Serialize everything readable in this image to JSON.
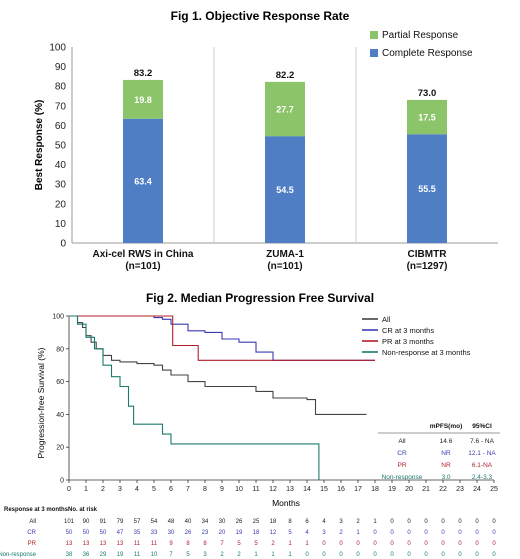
{
  "chart_data": [
    {
      "type": "bar",
      "stacked": true,
      "title": "Fig 1. Objective Response Rate",
      "ylabel": "Best Response (%)",
      "xlabel": "",
      "ylim": [
        0,
        100
      ],
      "yticks": [
        0,
        10,
        20,
        30,
        40,
        50,
        60,
        70,
        80,
        90,
        100
      ],
      "grid": false,
      "legend_position": "top-right",
      "categories": [
        {
          "name": "Axi-cel RWS in China",
          "n": "(n=101)"
        },
        {
          "name": "ZUMA-1",
          "n": "(n=101)"
        },
        {
          "name": "CIBMTR",
          "n": "(n=1297)"
        }
      ],
      "series": [
        {
          "name": "Complete Response",
          "color": "#4f7ec4",
          "values": [
            63.4,
            54.5,
            55.5
          ]
        },
        {
          "name": "Partial Response",
          "color": "#8cc46a",
          "values": [
            19.8,
            27.7,
            17.5
          ]
        }
      ],
      "totals": [
        83.2,
        82.2,
        73.0
      ],
      "total_labels": [
        "83.2",
        "82.2",
        "73.0"
      ],
      "value_labels": {
        "Complete Response": [
          "63.4",
          "54.5",
          "55.5"
        ],
        "Partial Response": [
          "19.8",
          "27.7",
          "17.5"
        ]
      }
    },
    {
      "type": "line",
      "subtype": "kaplan-meier",
      "title": "Fig 2. Median Progression Free Survival",
      "ylabel": "Progression-free Survival (%)",
      "xlabel": "Months",
      "xlim": [
        0,
        25
      ],
      "ylim": [
        0,
        100
      ],
      "xticks": [
        0,
        1,
        2,
        3,
        4,
        5,
        6,
        7,
        8,
        9,
        10,
        11,
        12,
        13,
        14,
        15,
        16,
        17,
        18,
        19,
        20,
        21,
        22,
        23,
        24,
        25
      ],
      "yticks": [
        0,
        20,
        40,
        60,
        80,
        100
      ],
      "grid": false,
      "legend_position": "top-right",
      "series": [
        {
          "name": "All",
          "color": "#444444",
          "points": [
            [
              0,
              100
            ],
            [
              0.5,
              96
            ],
            [
              0.8,
              93
            ],
            [
              1,
              88
            ],
            [
              1.3,
              84
            ],
            [
              1.6,
              80
            ],
            [
              2,
              76
            ],
            [
              2.5,
              73
            ],
            [
              3,
              72
            ],
            [
              4,
              71
            ],
            [
              5,
              70
            ],
            [
              5.5,
              67
            ],
            [
              6,
              64
            ],
            [
              7,
              60
            ],
            [
              8,
              57
            ],
            [
              10,
              57
            ],
            [
              11,
              54
            ],
            [
              12,
              50
            ],
            [
              13,
              50
            ],
            [
              14,
              49
            ],
            [
              14.5,
              40
            ],
            [
              17.5,
              40
            ]
          ]
        },
        {
          "name": "CR at 3 months",
          "color": "#3a3ab0",
          "points": [
            [
              0,
              100
            ],
            [
              3,
              100
            ],
            [
              4,
              100
            ],
            [
              5,
              99
            ],
            [
              5.5,
              98
            ],
            [
              6,
              95
            ],
            [
              7,
              91
            ],
            [
              8,
              90
            ],
            [
              9,
              86
            ],
            [
              10,
              84
            ],
            [
              11,
              78
            ],
            [
              12,
              73
            ],
            [
              13,
              73
            ],
            [
              18,
              73
            ]
          ]
        },
        {
          "name": "PR at 3 months",
          "color": "#b01e2a",
          "points": [
            [
              0,
              100
            ],
            [
              6,
              100
            ],
            [
              6.1,
              82
            ],
            [
              7.5,
              82
            ],
            [
              7.6,
              73
            ],
            [
              12,
              73
            ],
            [
              18,
              73
            ]
          ]
        },
        {
          "name": "Non-response at 3 months",
          "color": "#1a7a6e",
          "points": [
            [
              0,
              100
            ],
            [
              0.5,
              95
            ],
            [
              1,
              87
            ],
            [
              1.5,
              80
            ],
            [
              2,
              70
            ],
            [
              2.5,
              63
            ],
            [
              3,
              57
            ],
            [
              3.5,
              45
            ],
            [
              3.8,
              34
            ],
            [
              5,
              34
            ],
            [
              5.5,
              28
            ],
            [
              6,
              22
            ],
            [
              7,
              22
            ],
            [
              14.7,
              22
            ],
            [
              14.7,
              0
            ]
          ]
        }
      ],
      "table": {
        "headers": [
          "",
          "mPFS(mo)",
          "95%CI"
        ],
        "rows": [
          {
            "group": "All",
            "mpfs": "14.6",
            "ci": "7.6 - NA",
            "color": "#222222"
          },
          {
            "group": "CR",
            "mpfs": "NR",
            "ci": "12.1 - NA",
            "color": "#3a3ab0"
          },
          {
            "group": "PR",
            "mpfs": "NR",
            "ci": "6.1-NA",
            "color": "#b01e2a"
          },
          {
            "group": "Non-response",
            "mpfs": "3.0",
            "ci": "2.4-3.3",
            "color": "#1a7a6e"
          }
        ]
      },
      "risk_table": {
        "title": "Response at 3 months",
        "subtitle": "No. at risk",
        "rows": [
          {
            "label": "All",
            "color": "#222222",
            "values": [
              "101",
              "90",
              "91",
              "79",
              "57",
              "54",
              "48",
              "40",
              "34",
              "30",
              "26",
              "25",
              "18",
              "8",
              "6",
              "4",
              "3",
              "2",
              "1",
              "0",
              "0",
              "0",
              "0",
              "0",
              "0",
              "0"
            ]
          },
          {
            "label": "CR",
            "color": "#3a3ab0",
            "values": [
              "50",
              "50",
              "50",
              "47",
              "35",
              "33",
              "30",
              "26",
              "23",
              "20",
              "19",
              "18",
              "12",
              "5",
              "4",
              "3",
              "2",
              "1",
              "0",
              "0",
              "0",
              "0",
              "0",
              "0",
              "0",
              "0"
            ]
          },
          {
            "label": "PR",
            "color": "#b01e2a",
            "values": [
              "13",
              "13",
              "13",
              "13",
              "11",
              "11",
              "9",
              "8",
              "8",
              "7",
              "5",
              "5",
              "2",
              "1",
              "1",
              "0",
              "0",
              "0",
              "0",
              "0",
              "0",
              "0",
              "0",
              "0",
              "0",
              "0"
            ]
          },
          {
            "label": "Non-response",
            "color": "#1a7a6e",
            "values": [
              "38",
              "36",
              "29",
              "19",
              "11",
              "10",
              "7",
              "5",
              "3",
              "2",
              "2",
              "1",
              "1",
              "1",
              "0",
              "0",
              "0",
              "0",
              "0",
              "0",
              "0",
              "0",
              "0",
              "0",
              "0",
              "0"
            ]
          }
        ]
      }
    }
  ]
}
